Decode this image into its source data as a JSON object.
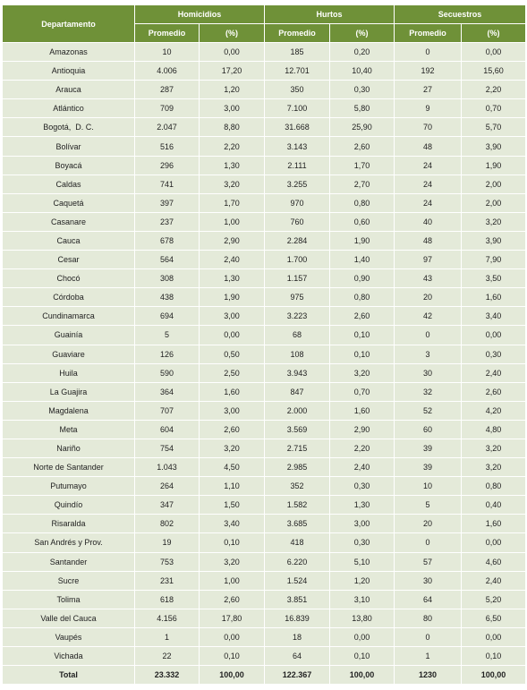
{
  "table": {
    "header": {
      "first": "Departamento",
      "groups": [
        {
          "title": "Homicidios",
          "sub": [
            "Promedio",
            "(%)"
          ]
        },
        {
          "title": "Hurtos",
          "sub": [
            "Promedio",
            "(%)"
          ]
        },
        {
          "title": "Secuestros",
          "sub": [
            "Promedio",
            "(%)"
          ]
        }
      ]
    },
    "rows": [
      [
        "Amazonas",
        "10",
        "0,00",
        "185",
        "0,20",
        "0",
        "0,00"
      ],
      [
        "Antioquia",
        "4.006",
        "17,20",
        "12.701",
        "10,40",
        "192",
        "15,60"
      ],
      [
        "Arauca",
        "287",
        "1,20",
        "350",
        "0,30",
        "27",
        "2,20"
      ],
      [
        "Atlántico",
        "709",
        "3,00",
        "7.100",
        "5,80",
        "9",
        "0,70"
      ],
      [
        "Bogotá,  D. C.",
        "2.047",
        "8,80",
        "31.668",
        "25,90",
        "70",
        "5,70"
      ],
      [
        "Bolívar",
        "516",
        "2,20",
        "3.143",
        "2,60",
        "48",
        "3,90"
      ],
      [
        "Boyacá",
        "296",
        "1,30",
        "2.111",
        "1,70",
        "24",
        "1,90"
      ],
      [
        "Caldas",
        "741",
        "3,20",
        "3.255",
        "2,70",
        "24",
        "2,00"
      ],
      [
        "Caquetá",
        "397",
        "1,70",
        "970",
        "0,80",
        "24",
        "2,00"
      ],
      [
        "Casanare",
        "237",
        "1,00",
        "760",
        "0,60",
        "40",
        "3,20"
      ],
      [
        "Cauca",
        "678",
        "2,90",
        "2.284",
        "1,90",
        "48",
        "3,90"
      ],
      [
        "Cesar",
        "564",
        "2,40",
        "1.700",
        "1,40",
        "97",
        "7,90"
      ],
      [
        "Chocó",
        "308",
        "1,30",
        "1.157",
        "0,90",
        "43",
        "3,50"
      ],
      [
        "Córdoba",
        "438",
        "1,90",
        "975",
        "0,80",
        "20",
        "1,60"
      ],
      [
        "Cundinamarca",
        "694",
        "3,00",
        "3.223",
        "2,60",
        "42",
        "3,40"
      ],
      [
        "Guainía",
        "5",
        "0,00",
        "68",
        "0,10",
        "0",
        "0,00"
      ],
      [
        "Guaviare",
        "126",
        "0,50",
        "108",
        "0,10",
        "3",
        "0,30"
      ],
      [
        "Huila",
        "590",
        "2,50",
        "3.943",
        "3,20",
        "30",
        "2,40"
      ],
      [
        "La Guajira",
        "364",
        "1,60",
        "847",
        "0,70",
        "32",
        "2,60"
      ],
      [
        "Magdalena",
        "707",
        "3,00",
        "2.000",
        "1,60",
        "52",
        "4,20"
      ],
      [
        "Meta",
        "604",
        "2,60",
        "3.569",
        "2,90",
        "60",
        "4,80"
      ],
      [
        "Nariño",
        "754",
        "3,20",
        "2.715",
        "2,20",
        "39",
        "3,20"
      ],
      [
        "Norte de Santander",
        "1.043",
        "4,50",
        "2.985",
        "2,40",
        "39",
        "3,20"
      ],
      [
        "Putumayo",
        "264",
        "1,10",
        "352",
        "0,30",
        "10",
        "0,80"
      ],
      [
        "Quindío",
        "347",
        "1,50",
        "1.582",
        "1,30",
        "5",
        "0,40"
      ],
      [
        "Risaralda",
        "802",
        "3,40",
        "3.685",
        "3,00",
        "20",
        "1,60"
      ],
      [
        "San Andrés y Prov.",
        "19",
        "0,10",
        "418",
        "0,30",
        "0",
        "0,00"
      ],
      [
        "Santander",
        "753",
        "3,20",
        "6.220",
        "5,10",
        "57",
        "4,60"
      ],
      [
        "Sucre",
        "231",
        "1,00",
        "1.524",
        "1,20",
        "30",
        "2,40"
      ],
      [
        "Tolima",
        "618",
        "2,60",
        "3.851",
        "3,10",
        "64",
        "5,20"
      ],
      [
        "Valle del Cauca",
        "4.156",
        "17,80",
        "16.839",
        "13,80",
        "80",
        "6,50"
      ],
      [
        "Vaupés",
        "1",
        "0,00",
        "18",
        "0,00",
        "0",
        "0,00"
      ],
      [
        "Vichada",
        "22",
        "0,10",
        "64",
        "0,10",
        "1",
        "0,10"
      ]
    ],
    "total": [
      "Total",
      "23.332",
      "100,00",
      "122.367",
      "100,00",
      "1230",
      "100,00"
    ]
  }
}
